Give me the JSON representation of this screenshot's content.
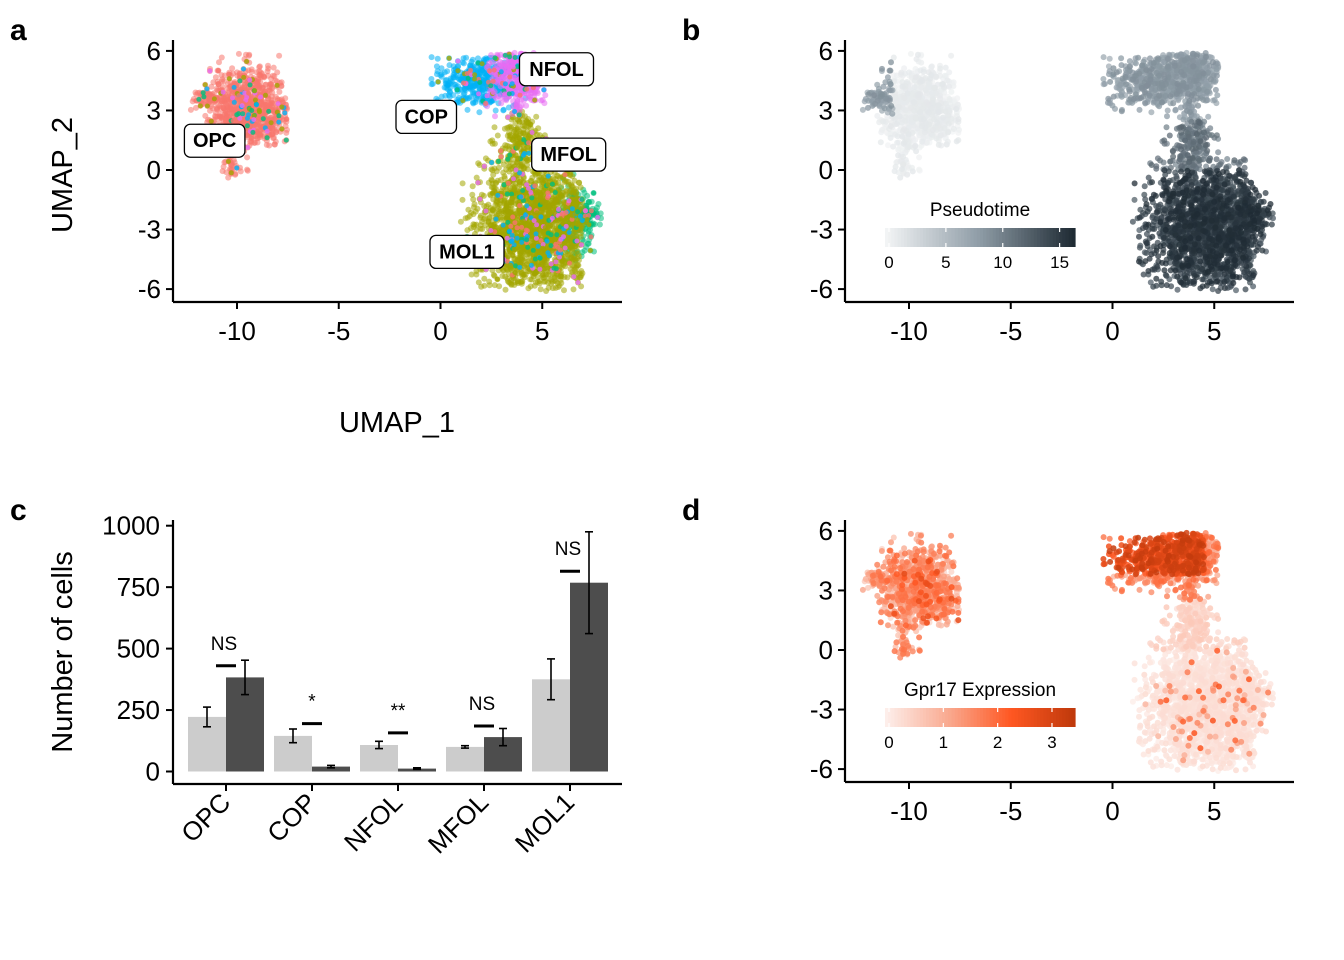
{
  "chart_data": [
    {
      "panel": "a",
      "type": "scatter",
      "xlabel": "UMAP_1",
      "ylabel": "UMAP_2",
      "xlim": [
        -13,
        8.2
      ],
      "ylim": [
        -6.7,
        6.6
      ],
      "x_ticks": [
        "-10",
        "-5",
        "0",
        "5"
      ],
      "y_ticks": [
        "-6",
        "-3",
        "0",
        "3",
        "6"
      ],
      "color_by": "cluster",
      "clusters": [
        {
          "name": "OPC",
          "color": "#F8766D",
          "center": [
            -9.5,
            3.2
          ],
          "label_pos": [
            -11.1,
            1.5
          ]
        },
        {
          "name": "COP",
          "color": "#00B0F6",
          "center": [
            2.0,
            4.5
          ],
          "label_pos": [
            -0.7,
            2.7
          ]
        },
        {
          "name": "NFOL",
          "color": "#E76BF3",
          "center": [
            3.8,
            4.8
          ],
          "label_pos": [
            5.7,
            5.1
          ]
        },
        {
          "name": "MFOL",
          "color": "#00BF7D",
          "center": [
            6.2,
            -2.3
          ],
          "label_pos": [
            6.3,
            0.8
          ]
        },
        {
          "name": "MOL1",
          "color": "#A3A500",
          "center": [
            4.7,
            -2.8
          ],
          "label_pos": [
            1.3,
            -4.1
          ]
        }
      ]
    },
    {
      "panel": "b",
      "type": "scatter",
      "color_by": "Pseudotime",
      "legend_title": "Pseudotime",
      "legend_ticks": [
        "0",
        "5",
        "10",
        "15"
      ],
      "color_range": [
        0,
        16
      ],
      "color_low": "#F2F4F5",
      "color_high": "#1F2B34",
      "x_ticks": [
        "-10",
        "-5",
        "0",
        "5"
      ],
      "y_ticks": [
        "-6",
        "-3",
        "0",
        "3",
        "6"
      ]
    },
    {
      "panel": "c",
      "type": "bar",
      "ylabel": "Number of cells",
      "ylim": [
        0,
        1000
      ],
      "y_ticks": [
        "0",
        "250",
        "500",
        "750",
        "1000"
      ],
      "categories": [
        "OPC",
        "COP",
        "NFOL",
        "MFOL",
        "MOL1"
      ],
      "series": [
        {
          "color": "#CCCCCC",
          "values": [
            222,
            145,
            108,
            100,
            375
          ],
          "err": [
            40,
            28,
            15,
            5,
            83
          ]
        },
        {
          "color": "#4D4D4D",
          "values": [
            383,
            20,
            12,
            140,
            768
          ],
          "err": [
            70,
            5,
            3,
            35,
            207
          ]
        }
      ],
      "significance": [
        {
          "category": "OPC",
          "label": "NS",
          "value": 430
        },
        {
          "category": "COP",
          "label": "*",
          "value": 195
        },
        {
          "category": "NFOL",
          "label": "**",
          "value": 157
        },
        {
          "category": "MFOL",
          "label": "NS",
          "value": 185
        },
        {
          "category": "MOL1",
          "label": "NS",
          "value": 815
        }
      ]
    },
    {
      "panel": "d",
      "type": "scatter",
      "color_by": "Gpr17 Expression",
      "legend_title": "Gpr17 Expression",
      "legend_ticks": [
        "0",
        "1",
        "2",
        "3"
      ],
      "color_range": [
        0,
        3.35
      ],
      "color_low": "#FDEEEA",
      "color_mid": "#FF5722",
      "color_high": "#C03A0C",
      "x_ticks": [
        "-10",
        "-5",
        "0",
        "5"
      ],
      "y_ticks": [
        "-6",
        "-3",
        "0",
        "3",
        "6"
      ]
    }
  ],
  "panel_letters": [
    "a",
    "b",
    "c",
    "d"
  ]
}
